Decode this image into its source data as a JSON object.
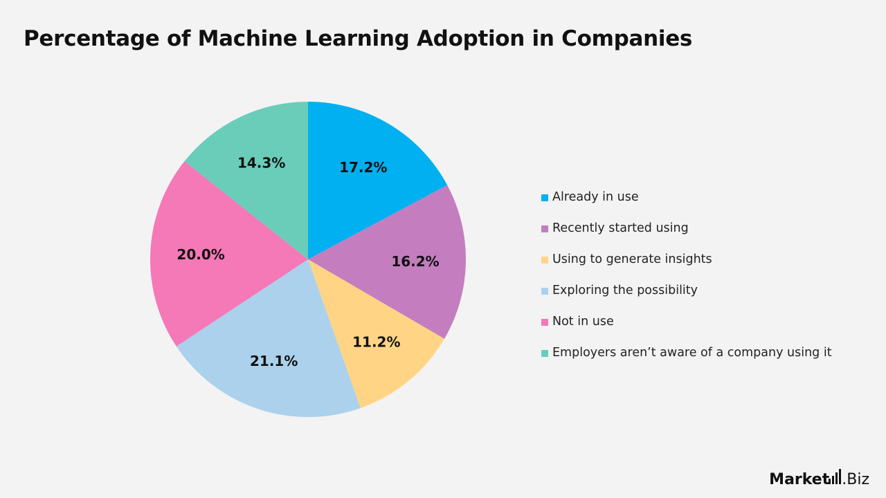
{
  "chart_data": {
    "type": "pie",
    "title": "Percentage of Machine Learning Adoption in Companies",
    "legend_position": "right",
    "slices": [
      {
        "label": "Already in use",
        "value": 17.2,
        "display": "17.2%",
        "color": "#00b0f0"
      },
      {
        "label": "Recently started using",
        "value": 16.2,
        "display": "16.2%",
        "color": "#c47dbf"
      },
      {
        "label": "Using to generate insights",
        "value": 11.2,
        "display": "11.2%",
        "color": "#ffd585"
      },
      {
        "label": "Exploring the possibility",
        "value": 21.1,
        "display": "21.1%",
        "color": "#abd1ec"
      },
      {
        "label": "Not in use",
        "value": 20.0,
        "display": "20.0%",
        "color": "#f578b7"
      },
      {
        "label": "Employers aren’t aware of a company using it",
        "value": 14.3,
        "display": "14.3%",
        "color": "#6acdb9"
      }
    ]
  },
  "logo": {
    "brand": "Market",
    "suffix": ".Biz"
  }
}
